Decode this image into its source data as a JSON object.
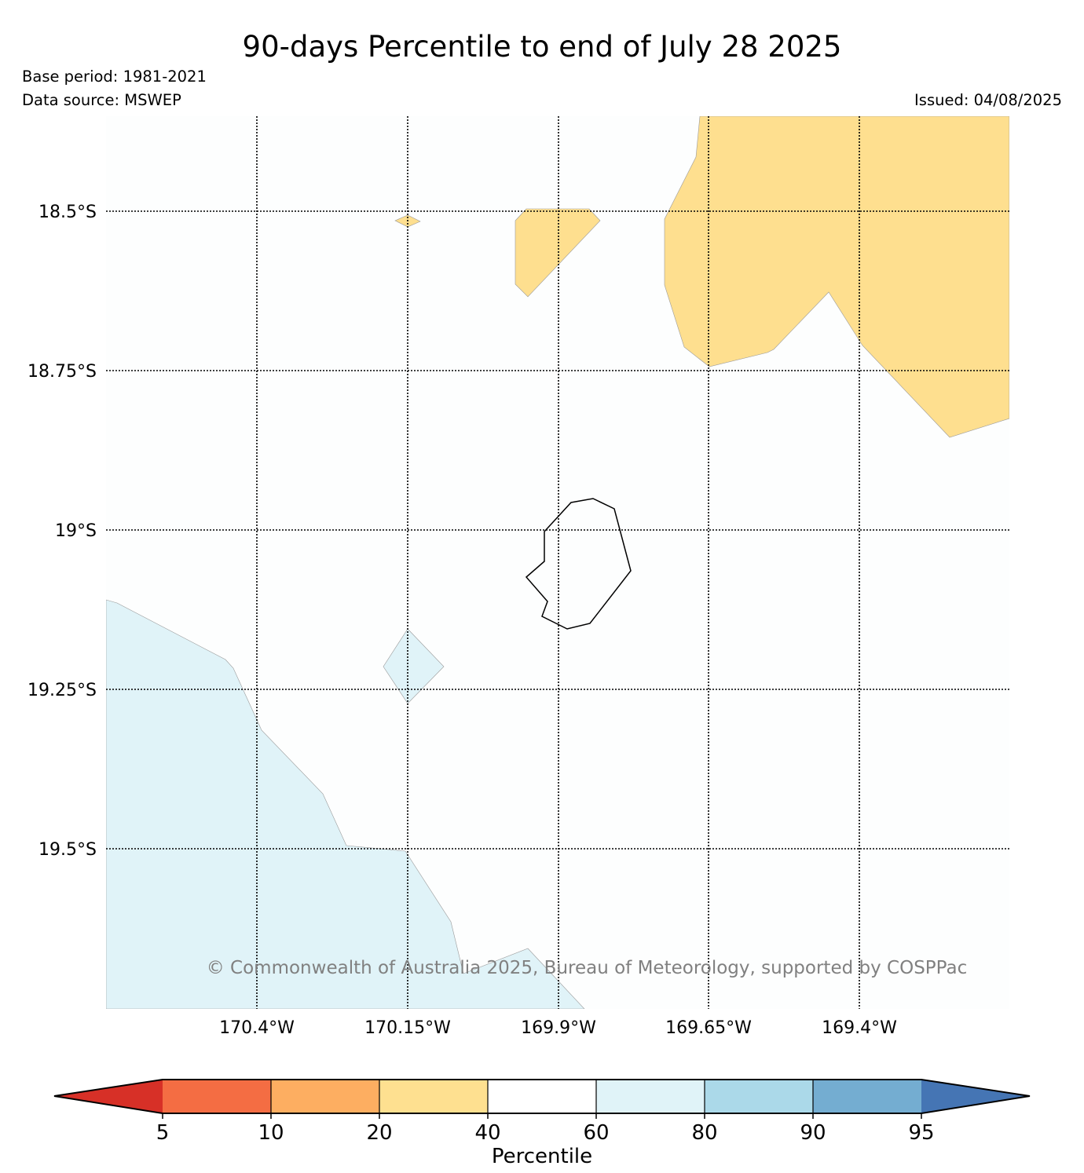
{
  "title": "90-days Percentile to end of July 28 2025",
  "base_period": "Base period: 1981-2021",
  "data_source": "Data source: MSWEP",
  "issued": "Issued: 04/08/2025",
  "copyright": "© Commonwealth of Australia 2025, Bureau of Meteorology, supported by COSPPac",
  "map": {
    "lat_labels": [
      "18.5°S",
      "18.75°S",
      "19°S",
      "19.25°S",
      "19.5°S"
    ],
    "lon_labels": [
      "170.4°W",
      "170.15°W",
      "169.9°W",
      "169.65°W",
      "169.4°W"
    ],
    "background_color": "#fdfefe",
    "fill_colors": {
      "dry": "#fedf8f",
      "wet": "#e0f3f8"
    }
  },
  "colorbar": {
    "label": "Percentile",
    "ticks": [
      "5",
      "10",
      "20",
      "40",
      "60",
      "80",
      "90",
      "95"
    ],
    "colors": [
      "#d73027",
      "#f46d43",
      "#fdae61",
      "#fee090",
      "#ffffff",
      "#e0f3f8",
      "#abd9e9",
      "#74add1",
      "#4575b4"
    ]
  }
}
